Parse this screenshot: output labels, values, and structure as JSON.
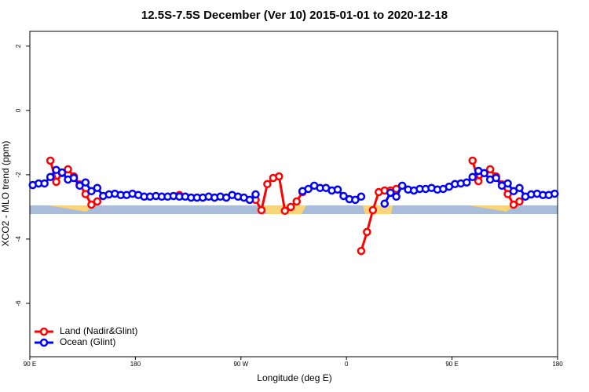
{
  "chart_data": {
    "type": "line",
    "title": "12.5S-7.5S December (Ver 10)   2015-01-01 to 2020-12-18",
    "xlabel": "Longitude (deg E)",
    "ylabel": "XCO2 - MLO trend (ppm)",
    "x": [
      92.5,
      97.5,
      102.5,
      107.5,
      112.5,
      117.5,
      122.5,
      127.5,
      132.5,
      137.5,
      142.5,
      147.5,
      152.5,
      157.5,
      162.5,
      167.5,
      172.5,
      177.5,
      182.5,
      187.5,
      192.5,
      197.5,
      202.5,
      207.5,
      212.5,
      217.5,
      222.5,
      227.5,
      232.5,
      237.5,
      242.5,
      247.5,
      252.5,
      257.5,
      262.5,
      267.5,
      272.5,
      277.5,
      282.5,
      287.5,
      292.5,
      297.5,
      302.5,
      307.5,
      312.5,
      317.5,
      322.5,
      327.5,
      332.5,
      337.5,
      342.5,
      347.5,
      352.5,
      357.5,
      362.5,
      367.5,
      372.5,
      377.5,
      382.5,
      387.5,
      392.5,
      397.5,
      402.5,
      407.5,
      412.5,
      417.5,
      422.5,
      427.5,
      432.5,
      437.5,
      442.5,
      447.5,
      452.5,
      457.5,
      462.5,
      467.5,
      472.5,
      477.5,
      482.5,
      487.5,
      492.5,
      497.5,
      502.5,
      507.5,
      512.5,
      517.5,
      522.5,
      527.5,
      532.5,
      537.5
    ],
    "series": [
      {
        "name": "Land (Nadir&Glint)",
        "color": "#ff0000",
        "values": [
          null,
          null,
          null,
          -1.56,
          -2.22,
          -1.95,
          -1.83,
          -2.05,
          -2.3,
          -2.6,
          -2.93,
          -2.83,
          null,
          null,
          null,
          null,
          null,
          null,
          null,
          null,
          null,
          null,
          null,
          null,
          null,
          -2.63,
          null,
          null,
          null,
          null,
          null,
          null,
          null,
          null,
          null,
          null,
          null,
          null,
          -2.78,
          -3.1,
          -2.29,
          -2.1,
          -2.05,
          -3.12,
          -3.0,
          -2.83,
          -2.54,
          null,
          null,
          null,
          null,
          null,
          null,
          null,
          null,
          null,
          -4.37,
          -3.78,
          -3.1,
          -2.54,
          -2.49,
          -2.49,
          -2.44,
          null,
          null,
          null,
          null,
          null,
          null,
          null,
          null,
          null,
          null,
          null,
          null,
          -1.56,
          -2.2,
          -1.95,
          -1.83,
          -2.05,
          -2.3,
          -2.6,
          -2.93,
          -2.83,
          null,
          null,
          null,
          null,
          null,
          null
        ]
      },
      {
        "name": "Ocean (Glint)",
        "color": "#0000ff",
        "values": [
          -2.32,
          -2.27,
          -2.27,
          -2.07,
          -1.85,
          -1.93,
          -2.15,
          -2.1,
          -2.34,
          -2.24,
          -2.51,
          -2.41,
          -2.66,
          -2.61,
          -2.59,
          -2.63,
          -2.63,
          -2.59,
          -2.63,
          -2.68,
          -2.68,
          -2.66,
          -2.68,
          -2.68,
          -2.66,
          -2.68,
          -2.68,
          -2.71,
          -2.71,
          -2.71,
          -2.68,
          -2.71,
          -2.68,
          -2.71,
          -2.63,
          -2.68,
          -2.71,
          -2.78,
          -2.61,
          null,
          null,
          null,
          null,
          null,
          null,
          null,
          -2.51,
          -2.44,
          -2.34,
          -2.41,
          -2.41,
          -2.49,
          -2.46,
          -2.66,
          -2.76,
          -2.78,
          -2.68,
          null,
          null,
          null,
          -2.9,
          -2.56,
          -2.68,
          -2.34,
          -2.46,
          -2.49,
          -2.44,
          -2.44,
          -2.41,
          -2.46,
          -2.44,
          -2.37,
          -2.29,
          -2.27,
          -2.24,
          -2.07,
          -1.88,
          -1.95,
          -2.15,
          -2.1,
          -2.34,
          -2.27,
          -2.51,
          -2.41,
          -2.68,
          -2.61,
          -2.59,
          -2.63,
          -2.63,
          -2.59
        ]
      }
    ],
    "xlim": [
      90,
      540
    ],
    "xticks": [
      {
        "value": 90,
        "label": "90 E"
      },
      180,
      {
        "value": 270,
        "label": "90 W"
      },
      {
        "value": 360,
        "label": "0"
      },
      {
        "value": 450,
        "label": "90 E"
      },
      {
        "value": 540,
        "label": "180"
      }
    ],
    "ylim": [
      -7.66,
      2.46
    ],
    "yticks": [
      2,
      0,
      -2,
      -4,
      -6
    ],
    "legend": "bottom-left"
  }
}
